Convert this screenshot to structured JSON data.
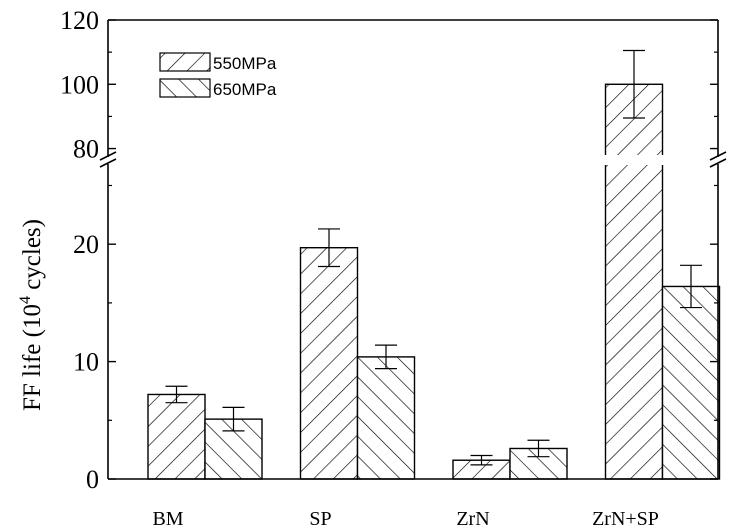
{
  "chart_data": {
    "type": "bar",
    "title": "",
    "xlabel": "",
    "ylabel": "FF life (10^4 cycles)",
    "ylabel_parts": {
      "prefix": "FF life (10",
      "sup": "4",
      "suffix": " cycles)"
    },
    "categories": [
      "BM",
      "SP",
      "ZrN",
      "ZrN+SP"
    ],
    "series": [
      {
        "name": "550MPa",
        "hatch": "forward",
        "values": [
          7.2,
          19.7,
          1.6,
          100
        ],
        "errors": [
          0.7,
          1.6,
          0.4,
          10.5
        ]
      },
      {
        "name": "650MPa",
        "hatch": "backward",
        "values": [
          5.1,
          10.4,
          2.6,
          16.4
        ],
        "errors": [
          1.0,
          1.0,
          0.7,
          1.8
        ]
      }
    ],
    "y_axis": {
      "broken": true,
      "lower_range": [
        0,
        27
      ],
      "upper_range": [
        78,
        120
      ],
      "ticks": [
        0,
        10,
        20,
        80,
        100,
        120
      ],
      "tick_labels": [
        "0",
        "10",
        "20",
        "80",
        "100",
        "120"
      ]
    },
    "legend_position": "top-left",
    "grid": false,
    "colors": {
      "stroke": "#000000",
      "background": "#ffffff"
    }
  }
}
